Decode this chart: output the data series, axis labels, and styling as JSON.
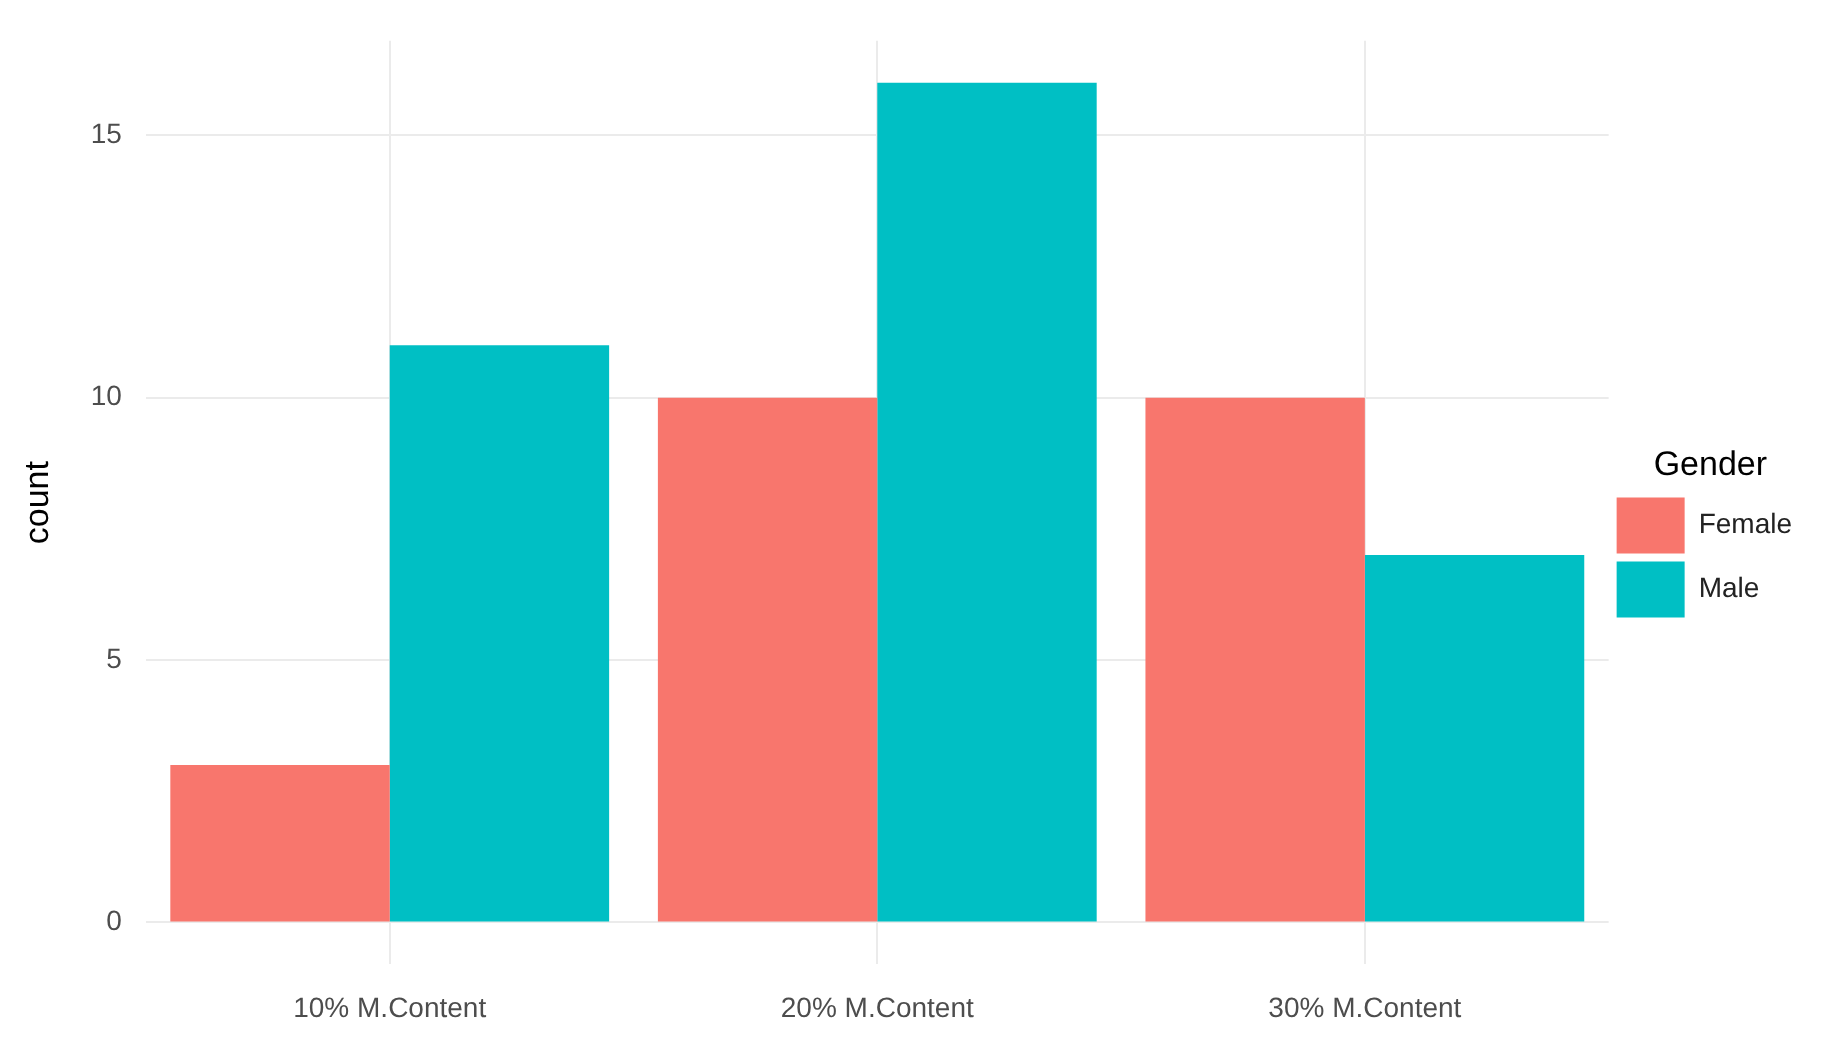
{
  "chart_data": {
    "type": "bar",
    "ylabel": "count",
    "legend_title": "Gender",
    "categories": [
      "10% M.Content",
      "20% M.Content",
      "30% M.Content"
    ],
    "series": [
      {
        "name": "Female",
        "color": "#f8766d",
        "values": [
          3,
          10,
          10
        ]
      },
      {
        "name": "Male",
        "color": "#00bfc4",
        "values": [
          11,
          16,
          7
        ]
      }
    ],
    "ylim": [
      -0.8,
      16.8
    ],
    "yticks": [
      0,
      5,
      10,
      15
    ],
    "grid": true,
    "legend": "right"
  }
}
